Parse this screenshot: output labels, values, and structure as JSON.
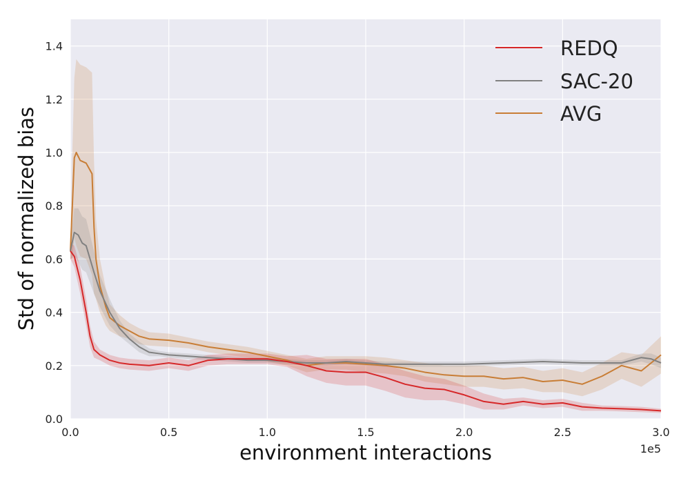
{
  "chart_data": {
    "type": "line",
    "title": "",
    "xlabel": "environment interactions",
    "ylabel": "Std of normalized bias",
    "x_offset_label": "1e5",
    "xlim": [
      0.0,
      3.0
    ],
    "ylim": [
      0.0,
      1.5
    ],
    "xticks": [
      "0.0",
      "0.5",
      "1.0",
      "1.5",
      "2.0",
      "2.5",
      "3.0"
    ],
    "yticks": [
      "0.0",
      "0.2",
      "0.4",
      "0.6",
      "0.8",
      "1.0",
      "1.2",
      "1.4"
    ],
    "grid": true,
    "legend_position": "top-right",
    "series": [
      {
        "name": "REDQ",
        "color": "#d62728",
        "x": [
          0.0,
          0.02,
          0.05,
          0.08,
          0.1,
          0.12,
          0.15,
          0.2,
          0.25,
          0.3,
          0.4,
          0.5,
          0.6,
          0.7,
          0.8,
          0.9,
          1.0,
          1.1,
          1.2,
          1.3,
          1.4,
          1.5,
          1.6,
          1.7,
          1.8,
          1.9,
          2.0,
          2.1,
          2.2,
          2.3,
          2.4,
          2.5,
          2.6,
          2.7,
          2.8,
          2.9,
          3.0
        ],
        "y": [
          0.63,
          0.61,
          0.52,
          0.4,
          0.31,
          0.26,
          0.24,
          0.22,
          0.21,
          0.205,
          0.2,
          0.21,
          0.2,
          0.22,
          0.225,
          0.225,
          0.225,
          0.215,
          0.2,
          0.18,
          0.175,
          0.175,
          0.155,
          0.13,
          0.115,
          0.11,
          0.09,
          0.065,
          0.055,
          0.065,
          0.055,
          0.06,
          0.045,
          0.04,
          0.038,
          0.035,
          0.03
        ],
        "band": [
          0.03,
          0.04,
          0.05,
          0.05,
          0.04,
          0.03,
          0.02,
          0.02,
          0.02,
          0.02,
          0.02,
          0.02,
          0.02,
          0.02,
          0.02,
          0.02,
          0.02,
          0.02,
          0.04,
          0.045,
          0.05,
          0.05,
          0.05,
          0.05,
          0.045,
          0.04,
          0.035,
          0.03,
          0.02,
          0.015,
          0.015,
          0.015,
          0.015,
          0.01,
          0.01,
          0.01,
          0.008
        ]
      },
      {
        "name": "SAC-20",
        "color": "#808080",
        "x": [
          0.0,
          0.02,
          0.04,
          0.06,
          0.08,
          0.1,
          0.12,
          0.15,
          0.2,
          0.25,
          0.3,
          0.35,
          0.4,
          0.45,
          0.5,
          0.6,
          0.7,
          0.8,
          0.9,
          1.0,
          1.1,
          1.2,
          1.3,
          1.4,
          1.5,
          1.6,
          1.7,
          1.8,
          1.9,
          2.0,
          2.2,
          2.4,
          2.6,
          2.8,
          2.9,
          2.95,
          3.0
        ],
        "y": [
          0.63,
          0.7,
          0.69,
          0.66,
          0.65,
          0.6,
          0.55,
          0.48,
          0.4,
          0.34,
          0.3,
          0.27,
          0.25,
          0.245,
          0.24,
          0.235,
          0.23,
          0.225,
          0.22,
          0.22,
          0.215,
          0.21,
          0.21,
          0.215,
          0.21,
          0.205,
          0.205,
          0.205,
          0.205,
          0.205,
          0.21,
          0.215,
          0.21,
          0.21,
          0.23,
          0.225,
          0.21
        ],
        "band": [
          0.03,
          0.09,
          0.1,
          0.1,
          0.1,
          0.09,
          0.08,
          0.06,
          0.05,
          0.03,
          0.02,
          0.02,
          0.015,
          0.01,
          0.01,
          0.01,
          0.01,
          0.01,
          0.01,
          0.01,
          0.01,
          0.01,
          0.01,
          0.01,
          0.01,
          0.01,
          0.01,
          0.01,
          0.01,
          0.01,
          0.01,
          0.01,
          0.01,
          0.01,
          0.015,
          0.02,
          0.02
        ]
      },
      {
        "name": "AVG",
        "color": "#c87d35",
        "x": [
          0.0,
          0.01,
          0.02,
          0.03,
          0.05,
          0.08,
          0.11,
          0.12,
          0.13,
          0.15,
          0.18,
          0.2,
          0.25,
          0.3,
          0.35,
          0.4,
          0.5,
          0.6,
          0.7,
          0.8,
          0.9,
          1.0,
          1.1,
          1.2,
          1.3,
          1.4,
          1.5,
          1.6,
          1.7,
          1.8,
          1.9,
          2.0,
          2.1,
          2.2,
          2.3,
          2.4,
          2.5,
          2.6,
          2.7,
          2.8,
          2.9,
          3.0
        ],
        "y": [
          0.63,
          0.8,
          0.98,
          1.0,
          0.97,
          0.96,
          0.92,
          0.72,
          0.6,
          0.5,
          0.42,
          0.38,
          0.35,
          0.33,
          0.31,
          0.3,
          0.295,
          0.285,
          0.27,
          0.26,
          0.25,
          0.235,
          0.22,
          0.2,
          0.21,
          0.21,
          0.205,
          0.2,
          0.19,
          0.175,
          0.165,
          0.16,
          0.16,
          0.15,
          0.155,
          0.14,
          0.145,
          0.13,
          0.16,
          0.2,
          0.18,
          0.24
        ]
      }
    ],
    "avg_band": [
      0.03,
      0.2,
      0.3,
      0.35,
      0.36,
      0.36,
      0.38,
      0.25,
      0.15,
      0.1,
      0.07,
      0.05,
      0.04,
      0.03,
      0.03,
      0.025,
      0.025,
      0.02,
      0.02,
      0.02,
      0.02,
      0.02,
      0.02,
      0.025,
      0.025,
      0.025,
      0.03,
      0.03,
      0.03,
      0.035,
      0.035,
      0.04,
      0.04,
      0.04,
      0.04,
      0.04,
      0.045,
      0.045,
      0.05,
      0.05,
      0.06,
      0.07
    ]
  }
}
